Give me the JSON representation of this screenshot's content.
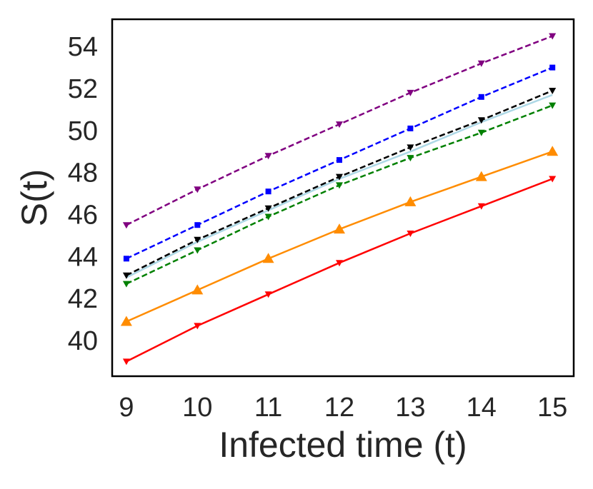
{
  "chart_data": {
    "type": "line",
    "title": "",
    "xlabel": "Infected time (t)",
    "ylabel": "S(t)",
    "xlim": [
      8.8,
      15.3
    ],
    "ylim": [
      38.3,
      55.3
    ],
    "grid": false,
    "legend": "none",
    "x": [
      9,
      10,
      11,
      12,
      13,
      14,
      15
    ],
    "x_ticks": [
      "9",
      "10",
      "11",
      "12",
      "13",
      "14",
      "15"
    ],
    "y_ticks": [
      "40",
      "42",
      "44",
      "46",
      "48",
      "50",
      "52",
      "54"
    ],
    "y_tick_values": [
      40,
      42,
      44,
      46,
      48,
      50,
      52,
      54
    ],
    "series": [
      {
        "name": "purple",
        "color": "#800080",
        "dash": "dashed",
        "marker": "tri_down",
        "values": [
          45.5,
          47.2,
          48.8,
          50.3,
          51.8,
          53.2,
          54.5
        ]
      },
      {
        "name": "blue",
        "color": "#0000ff",
        "dash": "dashed",
        "marker": "square",
        "values": [
          43.9,
          45.5,
          47.1,
          48.6,
          50.1,
          51.6,
          53.0
        ]
      },
      {
        "name": "light-blue",
        "color": "#add8e6",
        "dash": "solid",
        "marker": "none",
        "values": [
          43.0,
          44.7,
          46.2,
          47.7,
          49.0,
          50.4,
          51.7
        ]
      },
      {
        "name": "black",
        "color": "#000000",
        "dash": "dashed",
        "marker": "tri_down",
        "values": [
          43.1,
          44.8,
          46.3,
          47.8,
          49.2,
          50.5,
          51.9
        ]
      },
      {
        "name": "green",
        "color": "#008000",
        "dash": "dashed",
        "marker": "tri_down",
        "values": [
          42.7,
          44.3,
          45.9,
          47.4,
          48.7,
          49.9,
          51.2
        ]
      },
      {
        "name": "orange",
        "color": "#ff8c00",
        "dash": "solid",
        "marker": "triangle_up",
        "values": [
          40.9,
          42.4,
          43.9,
          45.3,
          46.6,
          47.8,
          49.0
        ]
      },
      {
        "name": "red",
        "color": "#ff0000",
        "dash": "solid",
        "marker": "tri_down",
        "values": [
          39.0,
          40.7,
          42.2,
          43.7,
          45.1,
          46.4,
          47.7
        ]
      }
    ]
  }
}
